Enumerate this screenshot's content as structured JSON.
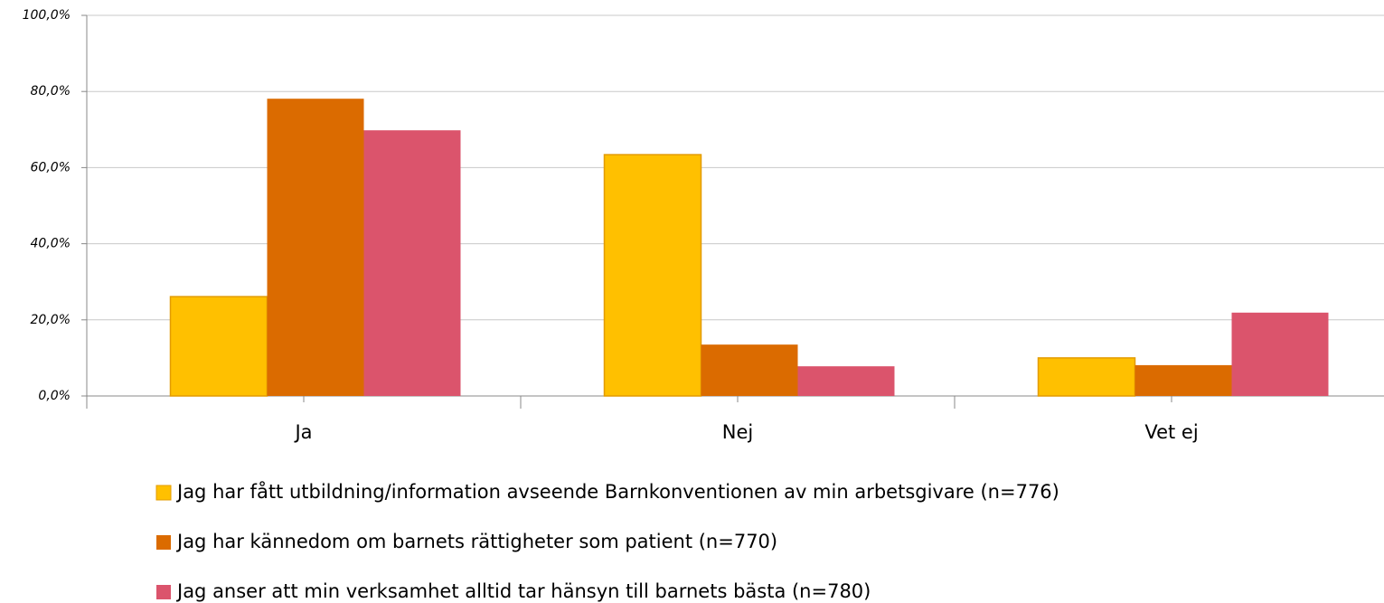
{
  "chart_data": {
    "type": "bar",
    "categories": [
      "Ja",
      "Nej",
      "Vet ej"
    ],
    "series": [
      {
        "name": "Jag har fått utbildning/information avseende Barnkonventionen av min arbetsgivare (n=776)",
        "color": "#ffc000",
        "values": [
          26.1,
          63.4,
          10.0
        ]
      },
      {
        "name": "Jag har kännedom om barnets rättigheter som patient (n=770)",
        "color": "#db6b00",
        "values": [
          78.1,
          13.5,
          8.1
        ]
      },
      {
        "name": "Jag anser att min verksamhet alltid tar hänsyn till barnets bästa (n=780)",
        "color": "#db546c",
        "values": [
          69.8,
          7.8,
          21.9
        ]
      }
    ],
    "ylim": [
      0,
      100
    ],
    "yticks": [
      {
        "value": 0,
        "label": "0,0%"
      },
      {
        "value": 20,
        "label": "20,0%"
      },
      {
        "value": 40,
        "label": "40,0%"
      },
      {
        "value": 60,
        "label": "60,0%"
      },
      {
        "value": 80,
        "label": "80,0%"
      },
      {
        "value": 100,
        "label": "100,0%"
      }
    ],
    "grid": true,
    "legend": "bottom"
  }
}
